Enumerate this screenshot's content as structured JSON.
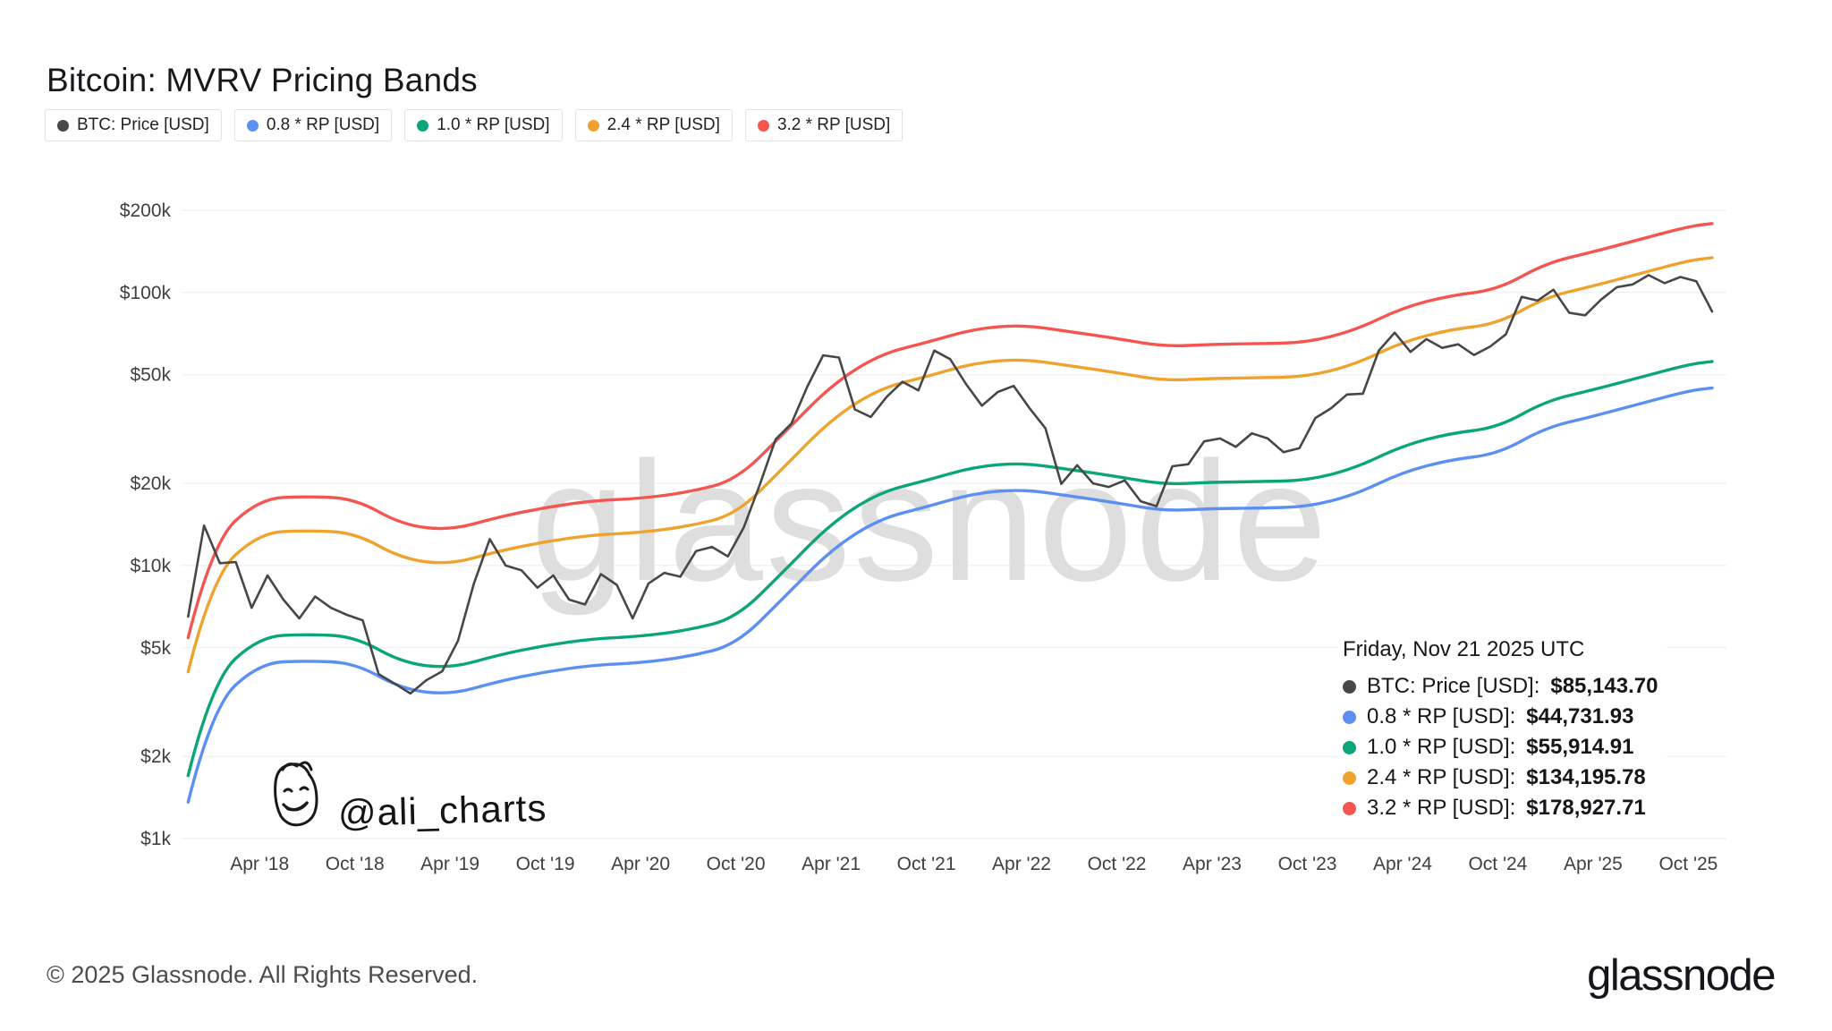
{
  "page": {
    "title": "Bitcoin: MVRV Pricing Bands",
    "watermark": "glassnode",
    "annotation_handle": "@ali_charts",
    "footer_copyright": "© 2025 Glassnode. All Rights Reserved.",
    "brand": "glassnode"
  },
  "colors": {
    "btc": "#474747",
    "band_08": "#5b8ff2",
    "band_10": "#0ba57a",
    "band_24": "#f0a22e",
    "band_32": "#f4564f",
    "grid": "#ebebeb",
    "watermark": "#dedede"
  },
  "legend": [
    {
      "label": "BTC: Price [USD]",
      "color": "#474747"
    },
    {
      "label": "0.8 * RP [USD]",
      "color": "#5b8ff2"
    },
    {
      "label": "1.0 * RP [USD]",
      "color": "#0ba57a"
    },
    {
      "label": "2.4 * RP [USD]",
      "color": "#f0a22e"
    },
    {
      "label": "3.2 * RP [USD]",
      "color": "#f4564f"
    }
  ],
  "tooltip": {
    "date": "Friday, Nov 21 2025 UTC",
    "rows": [
      {
        "label": "BTC: Price [USD]",
        "value": "$85,143.70",
        "color": "#474747"
      },
      {
        "label": "0.8 * RP [USD]",
        "value": "$44,731.93",
        "color": "#5b8ff2"
      },
      {
        "label": "1.0 * RP [USD]",
        "value": "$55,914.91",
        "color": "#0ba57a"
      },
      {
        "label": "2.4 * RP [USD]",
        "value": "$134,195.78",
        "color": "#f0a22e"
      },
      {
        "label": "3.2 * RP [USD]",
        "value": "$178,927.71",
        "color": "#f4564f"
      }
    ]
  },
  "chart_data": {
    "type": "line",
    "title": "Bitcoin: MVRV Pricing Bands",
    "y_scale": "log",
    "x_domain": [
      2017.85,
      2025.95
    ],
    "y_domain": [
      1000,
      200000
    ],
    "grid": "horizontal",
    "legend_position": "top-left",
    "y_ticks": [
      {
        "v": 200000,
        "label": "$200k"
      },
      {
        "v": 100000,
        "label": "$100k"
      },
      {
        "v": 50000,
        "label": "$50k"
      },
      {
        "v": 20000,
        "label": "$20k"
      },
      {
        "v": 10000,
        "label": "$10k"
      },
      {
        "v": 5000,
        "label": "$5k"
      },
      {
        "v": 2000,
        "label": "$2k"
      },
      {
        "v": 1000,
        "label": "$1k"
      }
    ],
    "x_ticks": [
      {
        "v": 2018.25,
        "label": "Apr '18"
      },
      {
        "v": 2018.75,
        "label": "Oct '18"
      },
      {
        "v": 2019.25,
        "label": "Apr '19"
      },
      {
        "v": 2019.75,
        "label": "Oct '19"
      },
      {
        "v": 2020.25,
        "label": "Apr '20"
      },
      {
        "v": 2020.75,
        "label": "Oct '20"
      },
      {
        "v": 2021.25,
        "label": "Apr '21"
      },
      {
        "v": 2021.75,
        "label": "Oct '21"
      },
      {
        "v": 2022.25,
        "label": "Apr '22"
      },
      {
        "v": 2022.75,
        "label": "Oct '22"
      },
      {
        "v": 2023.25,
        "label": "Apr '23"
      },
      {
        "v": 2023.75,
        "label": "Oct '23"
      },
      {
        "v": 2024.25,
        "label": "Apr '24"
      },
      {
        "v": 2024.75,
        "label": "Oct '24"
      },
      {
        "v": 2025.25,
        "label": "Apr '25"
      },
      {
        "v": 2025.75,
        "label": "Oct '25"
      }
    ],
    "band_x": [
      2017.875,
      2018.0,
      2018.25,
      2018.5,
      2018.75,
      2019.0,
      2019.25,
      2019.5,
      2019.75,
      2020.0,
      2020.25,
      2020.5,
      2020.75,
      2021.0,
      2021.25,
      2021.5,
      2021.75,
      2022.0,
      2022.25,
      2022.5,
      2022.75,
      2023.0,
      2023.25,
      2023.5,
      2023.75,
      2024.0,
      2024.25,
      2024.5,
      2024.75,
      2025.0,
      2025.25,
      2025.5,
      2025.75,
      2025.875
    ],
    "series": [
      {
        "name": "3.2 * RP [USD]",
        "color": "#f4564f",
        "smooth": true,
        "use_band_x": true,
        "multiplier": 3.2,
        "values": [
          5440,
          12160,
          17600,
          17920,
          17600,
          14080,
          13440,
          15040,
          16320,
          17280,
          17600,
          18560,
          20480,
          30400,
          45760,
          59200,
          65600,
          73600,
          76160,
          72000,
          67840,
          63360,
          64640,
          64960,
          65600,
          72640,
          88000,
          97600,
          102400,
          128000,
          140800,
          156800,
          174400,
          178927.71
        ]
      },
      {
        "name": "2.4 * RP [USD]",
        "color": "#f0a22e",
        "smooth": true,
        "use_band_x": true,
        "multiplier": 2.4,
        "values": [
          4080,
          9120,
          13200,
          13440,
          13200,
          10560,
          10080,
          11280,
          12240,
          12960,
          13200,
          13920,
          15360,
          22800,
          34320,
          44400,
          49200,
          55200,
          57120,
          54000,
          50880,
          47520,
          48480,
          48720,
          49200,
          54480,
          66000,
          73200,
          76800,
          96000,
          105600,
          117600,
          130800,
          134195.78
        ]
      },
      {
        "name": "1.0 * RP [USD]",
        "color": "#0ba57a",
        "smooth": true,
        "use_band_x": true,
        "multiplier": 1.0,
        "values": [
          1700,
          3800,
          5500,
          5600,
          5500,
          4400,
          4200,
          4700,
          5100,
          5400,
          5500,
          5800,
          6400,
          9500,
          14300,
          18500,
          20500,
          23000,
          23800,
          22500,
          21200,
          19800,
          20200,
          20300,
          20500,
          22700,
          27500,
          30500,
          32000,
          40000,
          44000,
          49000,
          54500,
          55914.91
        ]
      },
      {
        "name": "0.8 * RP [USD]",
        "color": "#5b8ff2",
        "smooth": true,
        "use_band_x": true,
        "multiplier": 0.8,
        "values": [
          1360,
          3040,
          4400,
          4480,
          4400,
          3520,
          3360,
          3760,
          4080,
          4320,
          4400,
          4640,
          5120,
          7600,
          11440,
          14800,
          16400,
          18400,
          19040,
          18000,
          16960,
          15840,
          16160,
          16240,
          16400,
          18160,
          22000,
          24400,
          25600,
          32000,
          35200,
          39200,
          43600,
          44731.93
        ]
      },
      {
        "name": "BTC: Price [USD]",
        "color": "#474747",
        "smooth": false,
        "x_start": 2017.875,
        "x_step_years": 0.0833333,
        "values": [
          6500,
          14000,
          10200,
          10300,
          7000,
          9200,
          7500,
          6400,
          7700,
          7000,
          6600,
          6300,
          4000,
          3700,
          3400,
          3800,
          4100,
          5300,
          8600,
          12500,
          10000,
          9600,
          8300,
          9200,
          7500,
          7200,
          9300,
          8500,
          6400,
          8600,
          9400,
          9100,
          11300,
          11700,
          10800,
          13800,
          19700,
          29000,
          33100,
          45200,
          58900,
          57800,
          37300,
          35000,
          41500,
          47100,
          43800,
          61300,
          57000,
          46200,
          38500,
          43200,
          45500,
          37700,
          31800,
          19900,
          23300,
          20000,
          19400,
          20500,
          17200,
          16500,
          23100,
          23500,
          28500,
          29200,
          27200,
          30500,
          29200,
          26000,
          26900,
          34700,
          37700,
          42300,
          42600,
          61200,
          71300,
          60600,
          67500,
          62700,
          64600,
          59000,
          63300,
          70200,
          96400,
          93400,
          102400,
          84300,
          82500,
          94200,
          104600,
          107100,
          115800,
          108200,
          114000,
          110000,
          85143.7
        ]
      }
    ]
  }
}
